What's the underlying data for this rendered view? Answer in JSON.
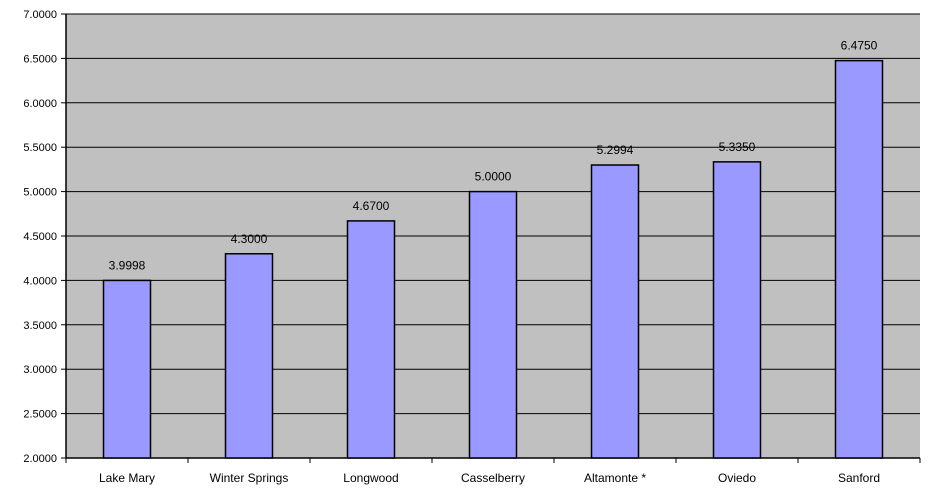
{
  "chart_data": {
    "type": "bar",
    "categories": [
      "Lake Mary",
      "Winter Springs",
      "Longwood",
      "Casselberry",
      "Altamonte *",
      "Oviedo",
      "Sanford"
    ],
    "values": [
      3.9998,
      4.3,
      4.67,
      5.0,
      5.2994,
      5.335,
      6.475
    ],
    "data_labels": [
      "3.9998",
      "4.3000",
      "4.6700",
      "5.0000",
      "5.2994",
      "5.3350",
      "6.4750"
    ],
    "y_ticks": [
      "2.0000",
      "2.5000",
      "3.0000",
      "3.5000",
      "4.0000",
      "4.5000",
      "5.0000",
      "5.5000",
      "6.0000",
      "6.5000",
      "7.0000"
    ],
    "ylim": [
      2.0,
      7.0
    ],
    "ytick_step": 0.5,
    "grid": true,
    "legend": "none",
    "title": "",
    "xlabel": "",
    "ylabel": "",
    "colors": {
      "bar_fill": "#9999ff",
      "bar_stroke": "#000000",
      "plot_background": "#c0c0c0",
      "gridline": "#000000"
    }
  }
}
